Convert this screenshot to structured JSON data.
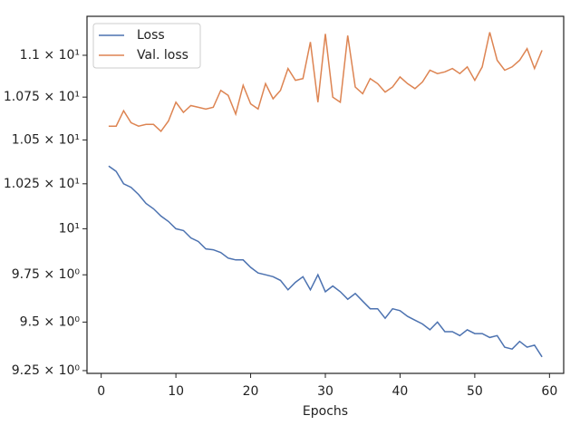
{
  "chart_data": {
    "type": "line",
    "xlabel": "Epochs",
    "x": [
      1,
      2,
      3,
      4,
      5,
      6,
      7,
      8,
      9,
      10,
      11,
      12,
      13,
      14,
      15,
      16,
      17,
      18,
      19,
      20,
      21,
      22,
      23,
      24,
      25,
      26,
      27,
      28,
      29,
      30,
      31,
      32,
      33,
      34,
      35,
      36,
      37,
      38,
      39,
      40,
      41,
      42,
      43,
      44,
      45,
      46,
      47,
      48,
      49,
      50,
      51,
      52,
      53,
      54,
      55,
      56,
      57,
      58,
      59
    ],
    "series": [
      {
        "name": "Loss",
        "color": "#4c72b0",
        "values": [
          10.35,
          10.32,
          10.25,
          10.23,
          10.19,
          10.14,
          10.11,
          10.07,
          10.04,
          10.0,
          9.99,
          9.95,
          9.93,
          9.89,
          9.885,
          9.87,
          9.84,
          9.83,
          9.83,
          9.79,
          9.76,
          9.75,
          9.74,
          9.72,
          9.67,
          9.71,
          9.74,
          9.67,
          9.75,
          9.66,
          9.69,
          9.66,
          9.62,
          9.65,
          9.61,
          9.57,
          9.57,
          9.52,
          9.57,
          9.56,
          9.53,
          9.51,
          9.49,
          9.46,
          9.5,
          9.45,
          9.45,
          9.43,
          9.46,
          9.44,
          9.44,
          9.42,
          9.43,
          9.37,
          9.36,
          9.4,
          9.37,
          9.38,
          9.32
        ]
      },
      {
        "name": "Val. loss",
        "color": "#dd8452",
        "values": [
          10.58,
          10.58,
          10.67,
          10.6,
          10.58,
          10.59,
          10.59,
          10.55,
          10.61,
          10.72,
          10.66,
          10.7,
          10.69,
          10.68,
          10.69,
          10.79,
          10.76,
          10.65,
          10.82,
          10.71,
          10.68,
          10.83,
          10.74,
          10.79,
          10.92,
          10.85,
          10.86,
          11.08,
          10.72,
          11.13,
          10.75,
          10.72,
          11.12,
          10.81,
          10.77,
          10.86,
          10.83,
          10.78,
          10.81,
          10.87,
          10.83,
          10.8,
          10.84,
          10.91,
          10.89,
          10.9,
          10.92,
          10.89,
          10.93,
          10.85,
          10.93,
          11.14,
          10.97,
          10.91,
          10.93,
          10.97,
          11.04,
          10.92,
          11.03
        ]
      }
    ],
    "xlim": [
      -1.9,
      61.9
    ],
    "xticks": [
      0,
      10,
      20,
      30,
      40,
      50,
      60
    ],
    "ylim": [
      9.236,
      11.238
    ],
    "yscale": "log",
    "yticks": [
      {
        "value": 9.25,
        "label": "9.25 × 10⁰"
      },
      {
        "value": 9.5,
        "label": "9.5 × 10⁰"
      },
      {
        "value": 9.75,
        "label": "9.75 × 10⁰"
      },
      {
        "value": 10,
        "label": "10¹"
      },
      {
        "value": 10.25,
        "label": "1.025 × 10¹"
      },
      {
        "value": 10.5,
        "label": "1.05 × 10¹"
      },
      {
        "value": 10.75,
        "label": "1.075 × 10¹"
      },
      {
        "value": 11,
        "label": "1.1 × 10¹"
      }
    ],
    "legend": "upper left"
  }
}
